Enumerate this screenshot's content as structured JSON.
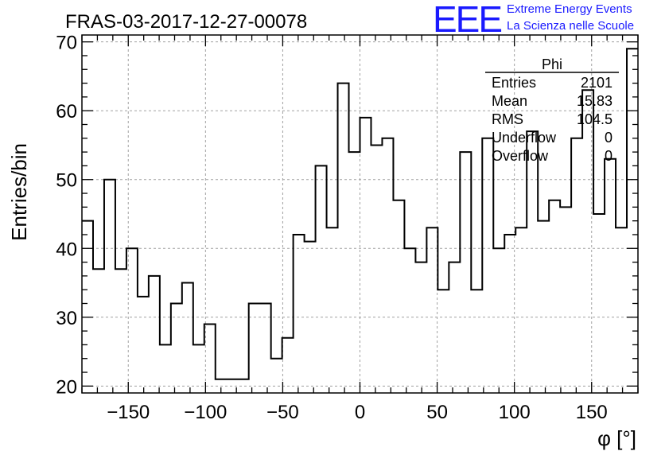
{
  "logo": {
    "mark": "EEE",
    "line1": "Extreme Energy Events",
    "line2": "La Scienza nelle Scuole",
    "color": "#1a1aff"
  },
  "chart_data": {
    "type": "bar",
    "title": "FRAS-03-2017-12-27-00078",
    "xlabel": "φ [°]",
    "ylabel": "Entries/bin",
    "xlim": [
      -180,
      180
    ],
    "ylim": [
      19,
      71
    ],
    "bin_width": 7.2,
    "xticks": [
      -150,
      -100,
      -50,
      0,
      50,
      100,
      150
    ],
    "yticks": [
      20,
      30,
      40,
      50,
      60,
      70
    ],
    "grid": true,
    "line_color": "#000000",
    "values": [
      44,
      37,
      50,
      37,
      40,
      33,
      36,
      26,
      32,
      35,
      26,
      29,
      21,
      21,
      21,
      32,
      32,
      24,
      27,
      42,
      41,
      52,
      43,
      64,
      54,
      59,
      55,
      56,
      47,
      40,
      38,
      43,
      34,
      38,
      54,
      34,
      56,
      40,
      42,
      43,
      57,
      44,
      47,
      46,
      56,
      63,
      45,
      53,
      43,
      69
    ],
    "stats": {
      "name": "Phi",
      "rows": [
        {
          "label": "Entries",
          "value": "2101"
        },
        {
          "label": "Mean",
          "value": "15.83"
        },
        {
          "label": "RMS",
          "value": "104.5"
        },
        {
          "label": "Underflow",
          "value": "0"
        },
        {
          "label": "Overflow",
          "value": "0"
        }
      ]
    }
  }
}
